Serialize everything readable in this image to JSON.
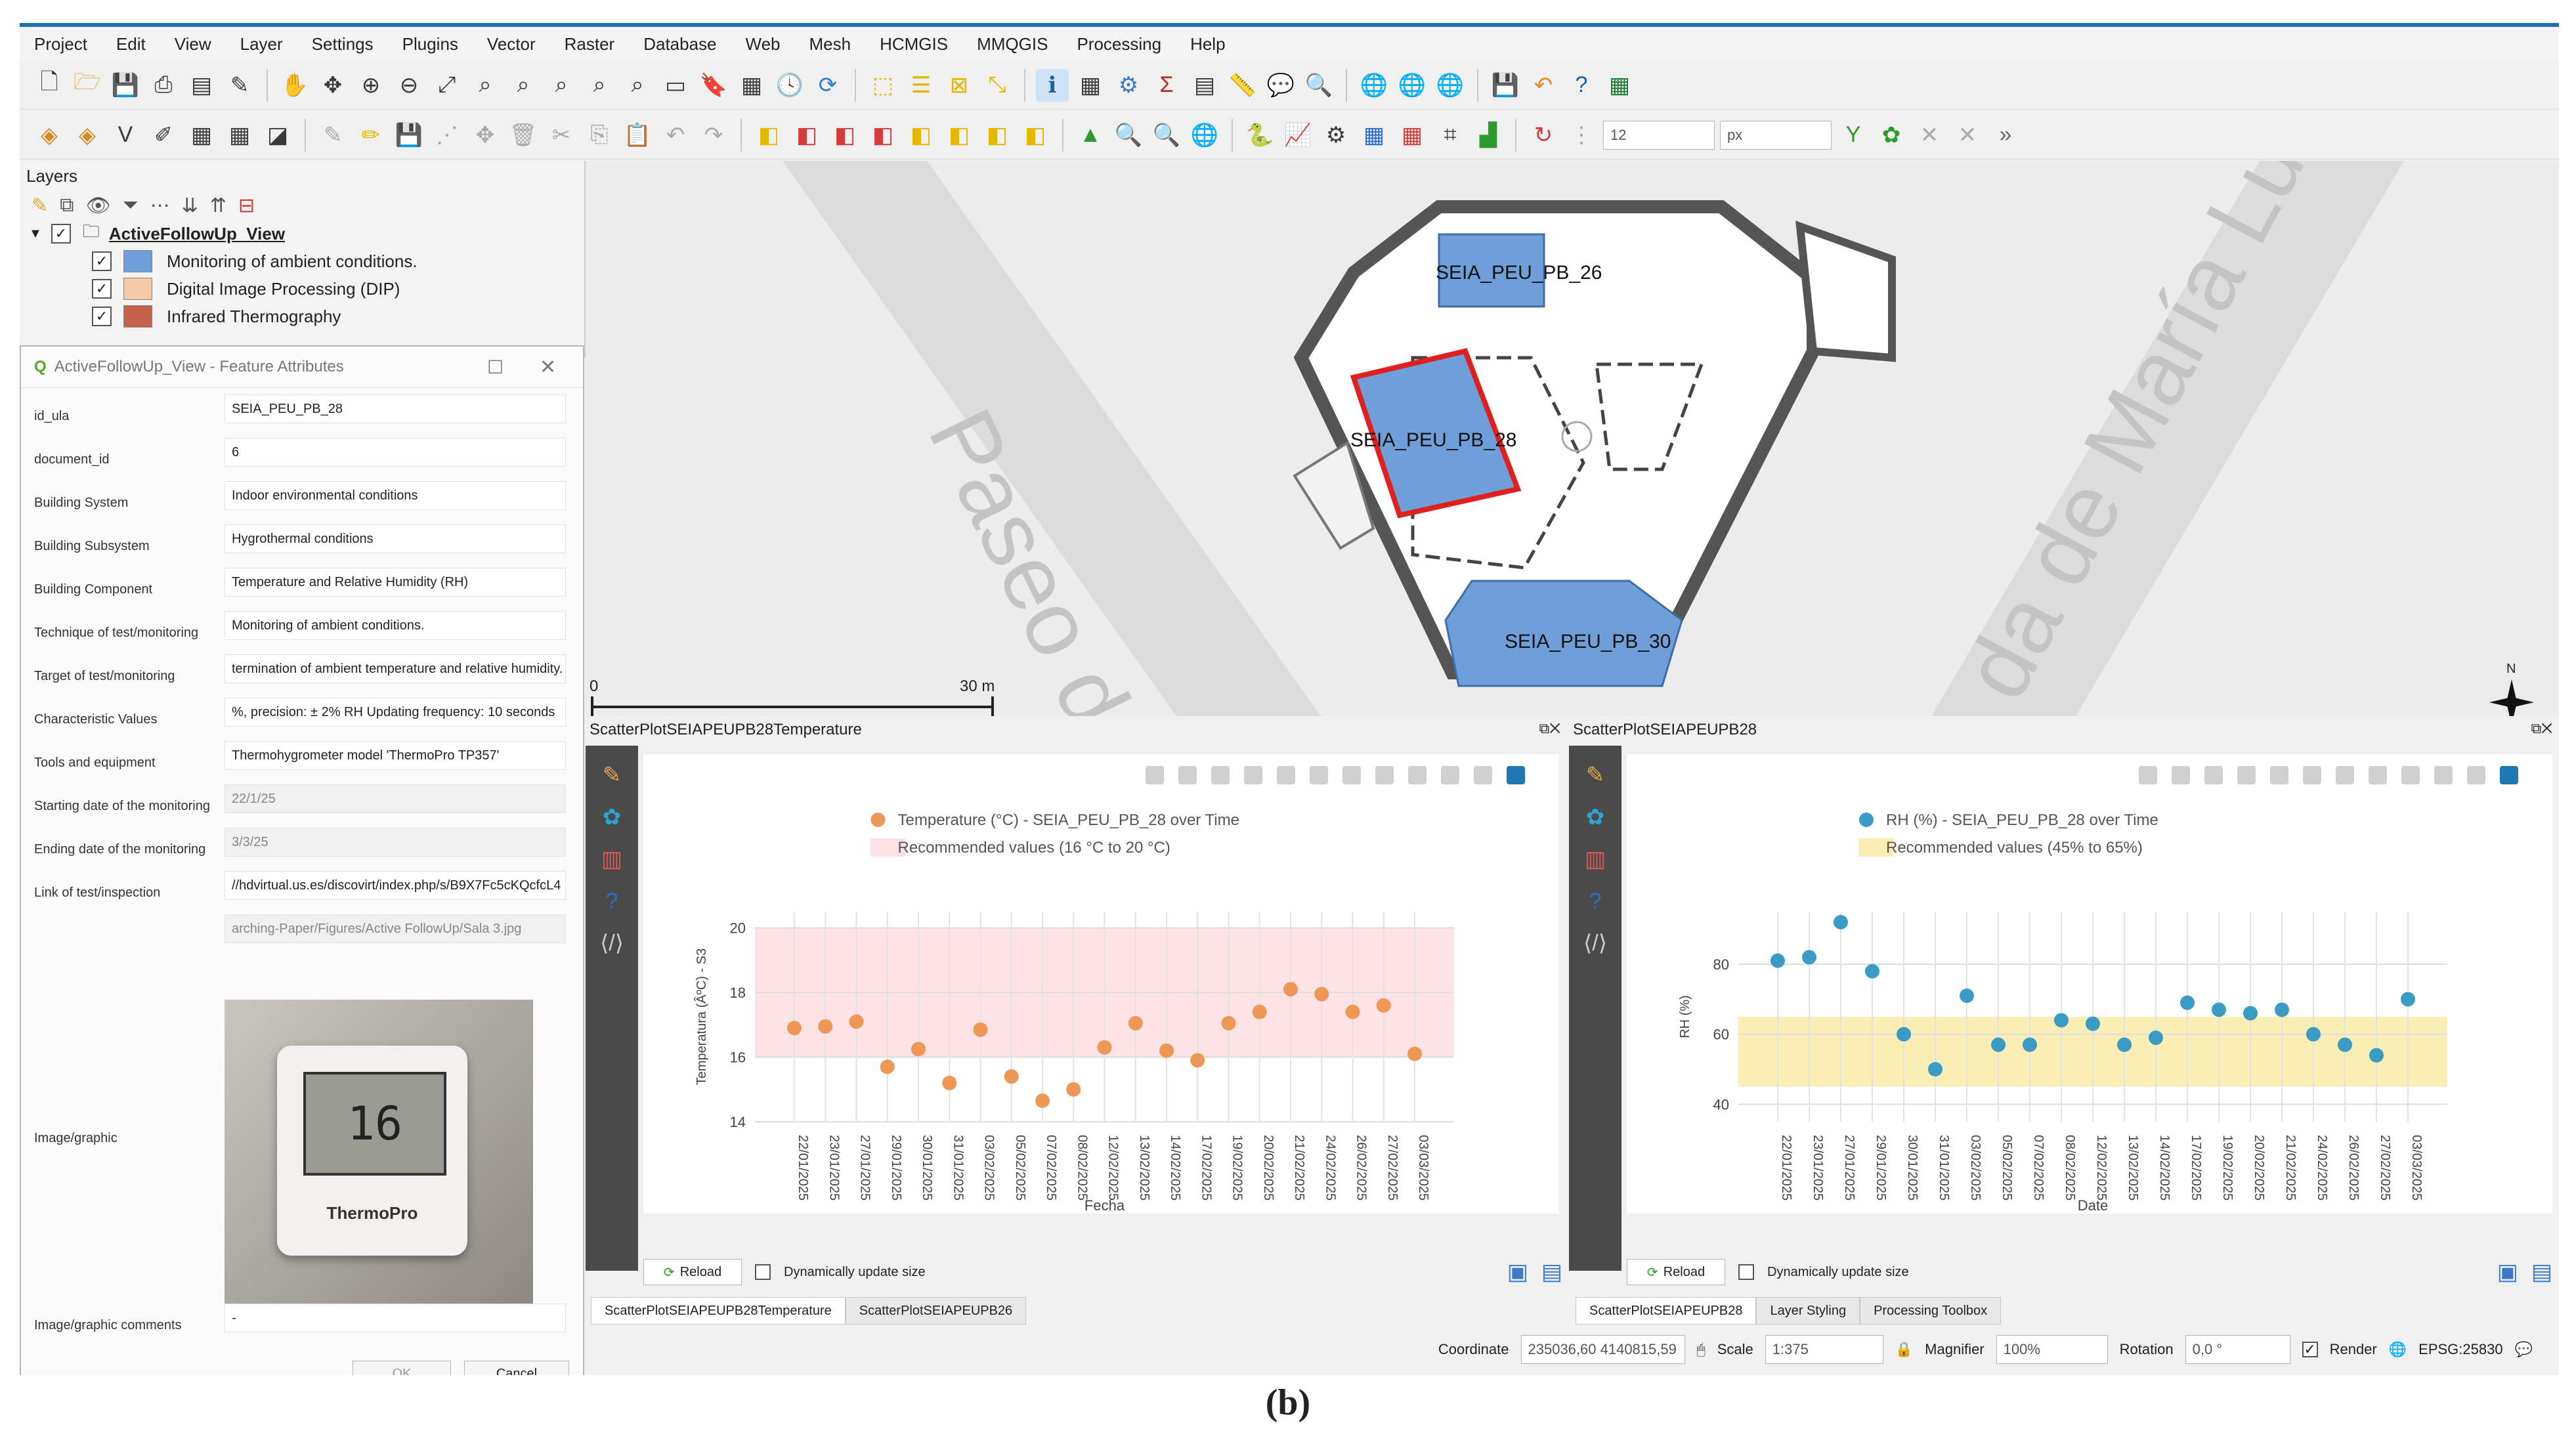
{
  "menu": [
    "Project",
    "Edit",
    "View",
    "Layer",
    "Settings",
    "Plugins",
    "Vector",
    "Raster",
    "Database",
    "Web",
    "Mesh",
    "HCMGIS",
    "MMQGIS",
    "Processing",
    "Help"
  ],
  "toolbar": {
    "size_value": "12",
    "unit_value": "px"
  },
  "layers": {
    "title": "Layers",
    "group": "ActiveFollowUp_View",
    "items": [
      {
        "label": "Monitoring of ambient conditions.",
        "color": "#6f9fd8"
      },
      {
        "label": "Digital Image Processing (DIP)",
        "color": "#f4c9a7"
      },
      {
        "label": "Infrared Thermography",
        "color": "#c4624a"
      }
    ]
  },
  "dialog": {
    "title": "ActiveFollowUp_View - Feature Attributes",
    "fields": [
      {
        "label": "id_ula",
        "value": "SEIA_PEU_PB_28"
      },
      {
        "label": "document_id",
        "value": "6"
      },
      {
        "label": "Building System",
        "value": "Indoor environmental conditions"
      },
      {
        "label": "Building Subsystem",
        "value": "Hygrothermal conditions"
      },
      {
        "label": "Building Component",
        "value": "Temperature and Relative Humidity (RH)"
      },
      {
        "label": "Technique of test/monitoring",
        "value": "Monitoring of ambient conditions."
      },
      {
        "label": "Target of test/monitoring",
        "value": "termination of ambient temperature and relative humidity."
      },
      {
        "label": "Characteristic Values",
        "value": "%, precision: ± 2% RH  Updating frequency: 10 seconds"
      },
      {
        "label": "Tools and equipment",
        "value": "Thermohygrometer model 'ThermoPro TP357'"
      },
      {
        "label": "Starting date of the monitoring",
        "value": "22/1/25"
      },
      {
        "label": "Ending date of the monitoring",
        "value": "3/3/25"
      },
      {
        "label": "Link of test/inspection",
        "value": "//hdvirtual.us.es/discovirt/index.php/s/B9X7Fc5cKQcfcL4"
      },
      {
        "label": "",
        "value": "arching-Paper/Figures/Active FollowUp/Sala 3.jpg"
      }
    ],
    "image_label": "Image/graphic",
    "image_comments_label": "Image/graphic comments",
    "image_comments_value": "-",
    "photo_display": "16",
    "photo_brand": "ThermoPro",
    "ok": "OK",
    "cancel": "Cancel"
  },
  "map": {
    "rooms": [
      "SEIA_PEU_PB_26",
      "SEIA_PEU_PB_28",
      "SEIA_PEU_PB_30"
    ],
    "street_left": "Paseo de",
    "street_right": "da de María Lu",
    "scale_start": "0",
    "scale_end": "30 m",
    "north": "N"
  },
  "plot1": {
    "dock_title": "ScatterPlotSEIAPEUPB28Temperature",
    "reload": "Reload",
    "dyn": "Dynamically update size"
  },
  "plot2": {
    "dock_title": "ScatterPlotSEIAPEUPB28",
    "reload": "Reload",
    "dyn": "Dynamically update size"
  },
  "tabs_left": [
    "ScatterPlotSEIAPEUPB28Temperature",
    "ScatterPlotSEIAPEUPB26"
  ],
  "tabs_right": [
    "ScatterPlotSEIAPEUPB28",
    "Layer Styling",
    "Processing Toolbox"
  ],
  "status": {
    "coord_label": "Coordinate",
    "coord_value": "235036,60 4140815,59",
    "scale_label": "Scale",
    "scale_value": "1:375",
    "magnifier_label": "Magnifier",
    "magnifier_value": "100%",
    "rotation_label": "Rotation",
    "rotation_value": "0,0 °",
    "render_label": "Render",
    "crs": "EPSG:25830"
  },
  "caption": "(b)",
  "chart_data": [
    {
      "type": "scatter",
      "series": [
        {
          "name": "Temperature (°C) - SEIA_PEU_PB_28 over Time",
          "color": "#ef9755",
          "values": [
            16.9,
            16.95,
            17.1,
            15.7,
            16.25,
            15.2,
            16.85,
            15.4,
            14.65,
            15.0,
            16.3,
            17.05,
            16.2,
            15.9,
            17.05,
            17.4,
            18.1,
            17.95,
            17.4,
            17.6,
            16.1
          ]
        }
      ],
      "band": {
        "name": "Recommended values (16 °C to 20 °C)",
        "range": [
          16,
          20
        ],
        "color": "#fde3e6"
      },
      "categories": [
        "22/01/2025",
        "23/01/2025",
        "27/01/2025",
        "29/01/2025",
        "30/01/2025",
        "31/01/2025",
        "03/02/2025",
        "05/02/2025",
        "07/02/2025",
        "08/02/2025",
        "12/02/2025",
        "13/02/2025",
        "14/02/2025",
        "17/02/2025",
        "19/02/2025",
        "20/02/2025",
        "21/02/2025",
        "24/02/2025",
        "26/02/2025",
        "27/02/2025",
        "03/03/2025"
      ],
      "xlabel": "Fecha",
      "ylabel": "Temperatura (ÂºC) - S3",
      "yticks": [
        14,
        16,
        18,
        20
      ],
      "ylim": [
        14,
        20.5
      ],
      "grid": true,
      "legend": "top-center"
    },
    {
      "type": "scatter",
      "series": [
        {
          "name": "RH (%) - SEIA_PEU_PB_28 over Time",
          "color": "#3a9cc4",
          "values": [
            81,
            82,
            92,
            78,
            60,
            50,
            71,
            57,
            57,
            64,
            63,
            57,
            59,
            69,
            67,
            66,
            67,
            60,
            57,
            54,
            70
          ]
        }
      ],
      "band": {
        "name": "Recommended values (45% to 65%)",
        "range": [
          45,
          65
        ],
        "color": "#fbeeb5"
      },
      "categories": [
        "22/01/2025",
        "23/01/2025",
        "27/01/2025",
        "29/01/2025",
        "30/01/2025",
        "31/01/2025",
        "03/02/2025",
        "05/02/2025",
        "07/02/2025",
        "08/02/2025",
        "12/02/2025",
        "13/02/2025",
        "14/02/2025",
        "17/02/2025",
        "19/02/2025",
        "20/02/2025",
        "21/02/2025",
        "24/02/2025",
        "26/02/2025",
        "27/02/2025",
        "03/03/2025"
      ],
      "xlabel": "Date",
      "ylabel": "RH (%)",
      "yticks": [
        40,
        60,
        80
      ],
      "ylim": [
        35,
        95
      ],
      "grid": true,
      "legend": "top-center"
    }
  ]
}
